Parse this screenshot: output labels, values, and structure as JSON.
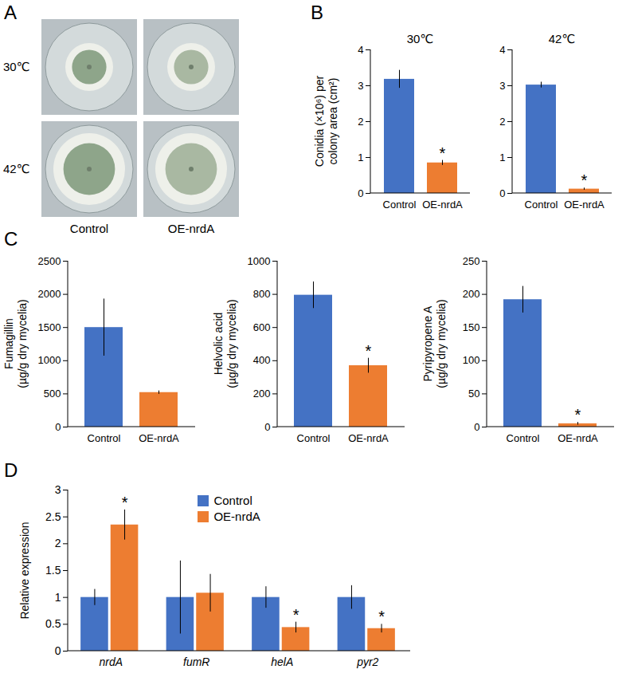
{
  "image_panel": {
    "panel": "A",
    "row_labels": [
      "30℃",
      "42℃"
    ],
    "column_labels": [
      "Control",
      "OE-nrdA"
    ]
  },
  "chart_data": [
    {
      "panel": "B",
      "type": "bar",
      "title": "30℃",
      "y_label": "Conidia (×10⁶) per colony area (cm²)",
      "categories": [
        "Control",
        "OE-nrdA"
      ],
      "values": [
        3.18,
        0.85
      ],
      "errors": [
        0.25,
        0.07
      ],
      "colors": [
        "#4472c4",
        "#ed7d31"
      ],
      "ylim": [
        0,
        4
      ],
      "yticks": [
        0,
        1,
        2,
        3,
        4
      ],
      "annotations": [
        {
          "category": "OE-nrdA",
          "text": "*"
        }
      ]
    },
    {
      "panel": "B",
      "type": "bar",
      "title": "42℃",
      "categories": [
        "Control",
        "OE-nrdA"
      ],
      "values": [
        3.02,
        0.12
      ],
      "errors": [
        0.08,
        0.03
      ],
      "colors": [
        "#4472c4",
        "#ed7d31"
      ],
      "ylim": [
        0,
        4
      ],
      "yticks": [
        0,
        1,
        2,
        3,
        4
      ],
      "annotations": [
        {
          "category": "OE-nrdA",
          "text": "*"
        }
      ]
    },
    {
      "panel": "C",
      "type": "bar",
      "y_label": "Fumagillin (µg/g dry mycelia)",
      "categories": [
        "Control",
        "OE-nrdA"
      ],
      "values": [
        1500,
        520
      ],
      "errors": [
        430,
        25
      ],
      "colors": [
        "#4472c4",
        "#ed7d31"
      ],
      "ylim": [
        0,
        2500
      ],
      "yticks": [
        0,
        500,
        1000,
        1500,
        2000,
        2500
      ]
    },
    {
      "panel": "C",
      "type": "bar",
      "y_label": "Helvolic acid (µg/g dry mycelia)",
      "categories": [
        "Control",
        "OE-nrdA"
      ],
      "values": [
        795,
        370
      ],
      "errors": [
        80,
        45
      ],
      "colors": [
        "#4472c4",
        "#ed7d31"
      ],
      "ylim": [
        0,
        1000
      ],
      "yticks": [
        0,
        200,
        400,
        600,
        800,
        1000
      ],
      "annotations": [
        {
          "category": "OE-nrdA",
          "text": "*"
        }
      ]
    },
    {
      "panel": "C",
      "type": "bar",
      "y_label": "Pyripyropene A (µg/g dry mycelia)",
      "categories": [
        "Control",
        "OE-nrdA"
      ],
      "values": [
        192,
        5
      ],
      "errors": [
        20,
        2
      ],
      "colors": [
        "#4472c4",
        "#ed7d31"
      ],
      "ylim": [
        0,
        250
      ],
      "yticks": [
        0,
        50,
        100,
        150,
        200,
        250
      ],
      "annotations": [
        {
          "category": "OE-nrdA",
          "text": "*"
        }
      ]
    },
    {
      "panel": "D",
      "type": "bar",
      "y_label": "Relative expression",
      "categories": [
        "nrdA",
        "fumR",
        "helA",
        "pyr2"
      ],
      "series": [
        {
          "name": "Control",
          "color": "#4472c4",
          "values": [
            1,
            1,
            1,
            1
          ],
          "errors": [
            0.15,
            0.68,
            0.2,
            0.22
          ]
        },
        {
          "name": "OE-nrdA",
          "color": "#ed7d31",
          "values": [
            2.35,
            1.08,
            0.44,
            0.42
          ],
          "errors": [
            0.28,
            0.35,
            0.1,
            0.08
          ]
        }
      ],
      "ylim": [
        0,
        3
      ],
      "yticks": [
        0,
        0.5,
        1,
        1.5,
        2,
        2.5,
        3
      ],
      "legend": "top",
      "annotations": [
        {
          "category": "nrdA",
          "series": "OE-nrdA",
          "text": "*"
        },
        {
          "category": "helA",
          "series": "OE-nrdA",
          "text": "*"
        },
        {
          "category": "pyr2",
          "series": "OE-nrdA",
          "text": "*"
        }
      ]
    }
  ]
}
